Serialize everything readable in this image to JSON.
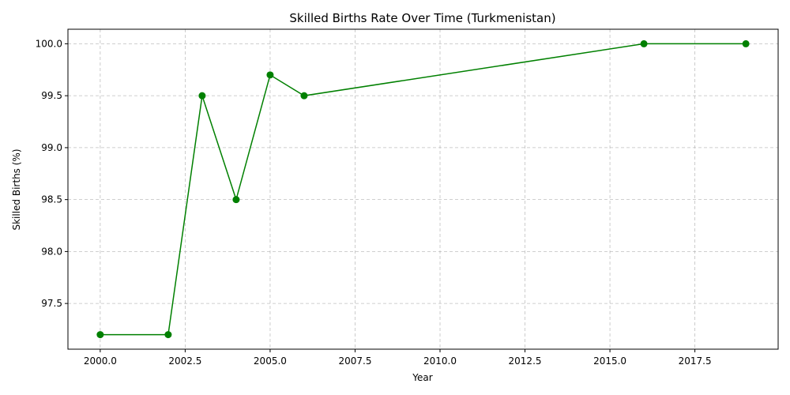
{
  "chart_data": {
    "type": "line",
    "title": "Skilled Births Rate Over Time (Turkmenistan)",
    "xlabel": "Year",
    "ylabel": "Skilled Births (%)",
    "xlim": [
      1999.05,
      2019.95
    ],
    "ylim": [
      97.06,
      100.14
    ],
    "xticks": [
      2000.0,
      2002.5,
      2005.0,
      2007.5,
      2010.0,
      2012.5,
      2015.0,
      2017.5
    ],
    "xtick_labels": [
      "2000.0",
      "2002.5",
      "2005.0",
      "2007.5",
      "2010.0",
      "2012.5",
      "2015.0",
      "2017.5"
    ],
    "yticks": [
      97.5,
      98.0,
      98.5,
      99.0,
      99.5,
      100.0
    ],
    "ytick_labels": [
      "97.5",
      "98.0",
      "98.5",
      "99.0",
      "99.5",
      "100.0"
    ],
    "grid": true,
    "series": [
      {
        "x": [
          2000,
          2002,
          2003,
          2004,
          2005,
          2006,
          2016,
          2019
        ],
        "y": [
          97.2,
          97.2,
          99.5,
          98.5,
          99.7,
          99.5,
          100.0,
          100.0
        ],
        "color": "#008000",
        "marker": "circle"
      }
    ]
  }
}
